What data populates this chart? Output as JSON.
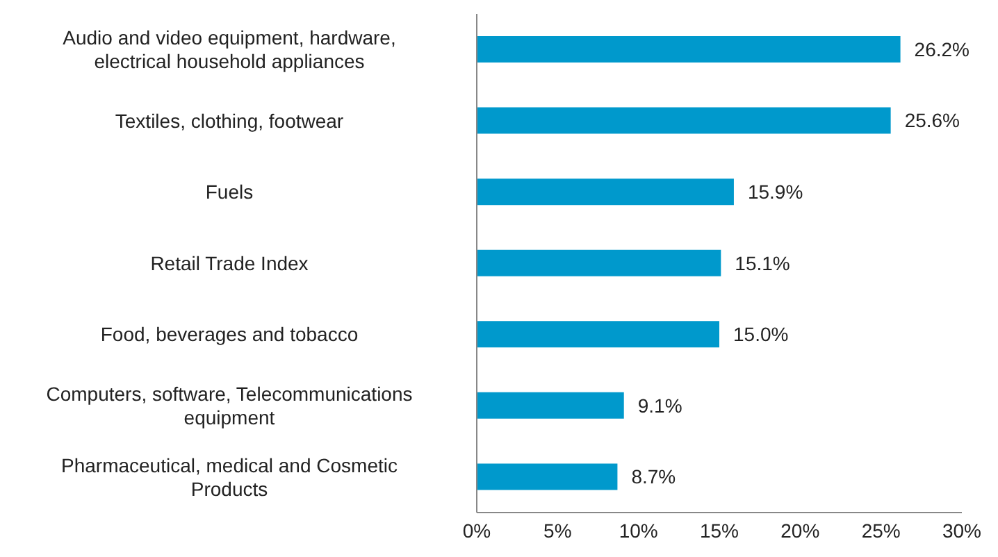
{
  "chart_data": {
    "type": "bar",
    "orientation": "horizontal",
    "categories": [
      "Audio and video equipment, hardware, electrical household appliances",
      "Textiles, clothing, footwear",
      "Fuels",
      "Retail Trade Index",
      "Food, beverages and tobacco",
      "Computers, software, Telecommunications equipment",
      "Pharmaceutical, medical and Cosmetic Products"
    ],
    "values": [
      26.2,
      25.6,
      15.9,
      15.1,
      15.0,
      9.1,
      8.7
    ],
    "value_labels": [
      "26.2%",
      "25.6%",
      "15.9%",
      "15.1%",
      "15.0%",
      "9.1%",
      "8.7%"
    ],
    "color": "#0099cc",
    "xlim": [
      0,
      30
    ],
    "xticks": [
      {
        "value": 0,
        "label": "0%"
      },
      {
        "value": 5,
        "label": "5%"
      },
      {
        "value": 10,
        "label": "10%"
      },
      {
        "value": 15,
        "label": "15%"
      },
      {
        "value": 20,
        "label": "20%"
      },
      {
        "value": 25,
        "label": "25%"
      },
      {
        "value": 30,
        "label": "30%"
      }
    ],
    "grid": false,
    "legend": false
  }
}
